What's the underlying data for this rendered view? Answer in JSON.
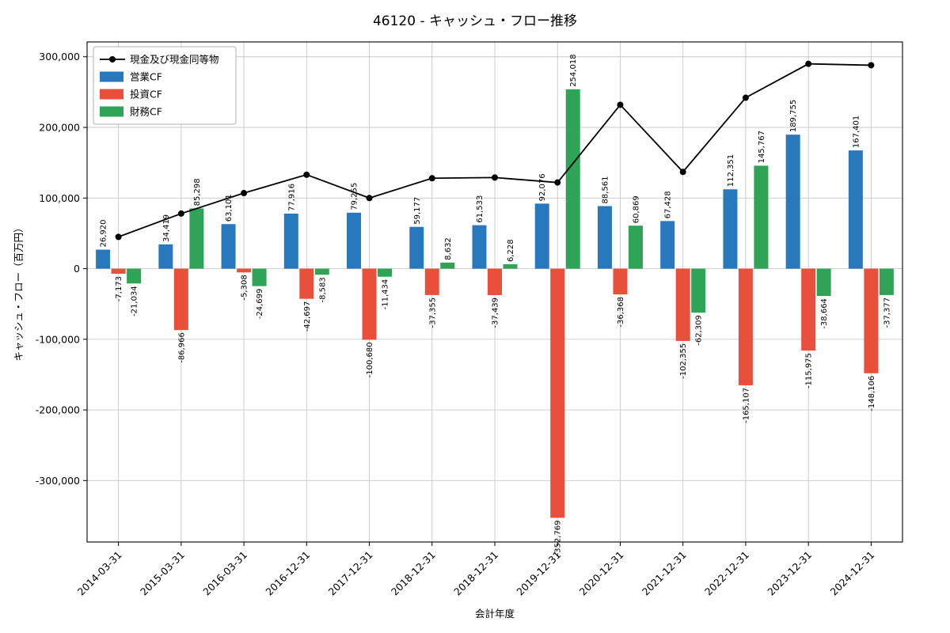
{
  "figure": {
    "title": "46120 - キャッシュ・フロー推移"
  },
  "chart_data": {
    "type": "bar",
    "title": "46120 - キャッシュ・フロー推移",
    "xlabel": "会計年度",
    "ylabel": "キャッシュ・フロー（百万円）",
    "categories": [
      "2014-03-31",
      "2015-03-31",
      "2016-03-31",
      "2016-12-31",
      "2017-12-31",
      "2018-12-31",
      "2018-12-31",
      "2019-12-31",
      "2020-12-31",
      "2021-12-31",
      "2022-12-31",
      "2023-12-31",
      "2024-12-31"
    ],
    "series": [
      {
        "name": "現金及び現金同等物",
        "key": "cash-and-equivalents",
        "type": "line",
        "color": "#000000",
        "values": [
          45000,
          78000,
          107000,
          133000,
          100000,
          128000,
          129000,
          122000,
          232000,
          137000,
          242000,
          290000,
          288000
        ]
      },
      {
        "name": "営業CF",
        "key": "operating-cf",
        "type": "bar",
        "color": "#2878BE",
        "values": [
          26920,
          34419,
          63101,
          77916,
          79255,
          59177,
          61533,
          92076,
          88561,
          67428,
          112351,
          189755,
          167401
        ]
      },
      {
        "name": "投資CF",
        "key": "investing-cf",
        "type": "bar",
        "color": "#E8503C",
        "values": [
          -7173,
          -86966,
          -5308,
          -42697,
          -100680,
          -37355,
          -37439,
          -352769,
          -36368,
          -102355,
          -165107,
          -115975,
          -148106
        ]
      },
      {
        "name": "財務CF",
        "key": "financing-cf",
        "type": "bar",
        "color": "#2FA457",
        "values": [
          -21034,
          85298,
          -24699,
          -8583,
          -11434,
          8632,
          6228,
          254018,
          60869,
          -62309,
          145767,
          -38664,
          -37377
        ]
      }
    ],
    "ylim": [
      -387000,
      321000
    ],
    "yticks": [
      -300000,
      -200000,
      -100000,
      0,
      100000,
      200000,
      300000
    ],
    "grid": true,
    "legend_position": "upper left",
    "colors": {
      "grid": "#c9c9c9",
      "spine": "#000000",
      "label": "#000000"
    }
  }
}
